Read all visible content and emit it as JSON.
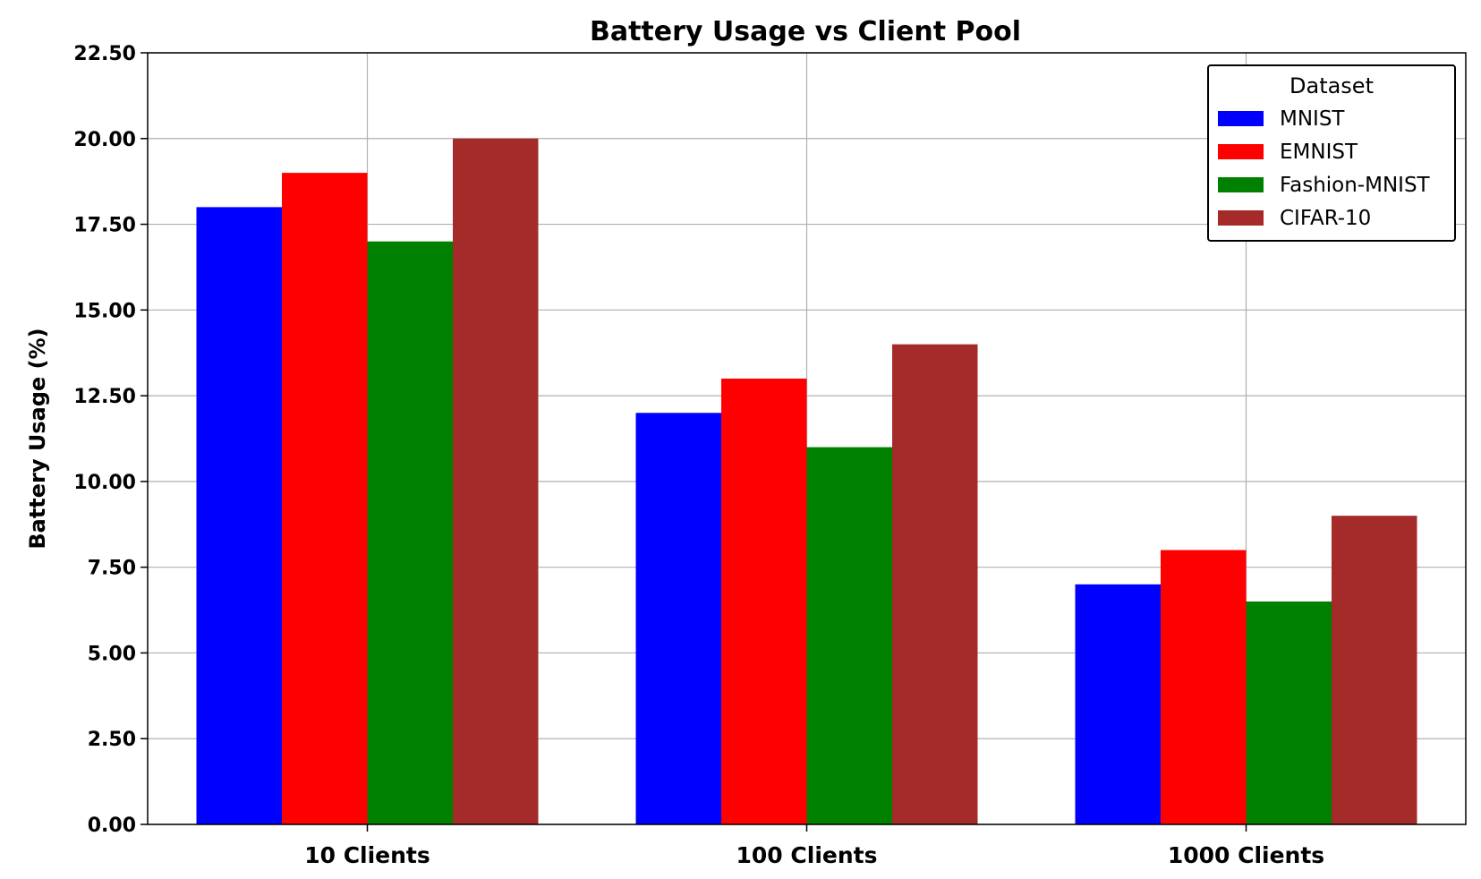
{
  "chart_data": {
    "type": "bar",
    "title": "Battery Usage vs Client Pool",
    "xlabel": "",
    "ylabel": "Battery Usage (%)",
    "categories": [
      "10 Clients",
      "100 Clients",
      "1000 Clients"
    ],
    "ylim": [
      0,
      22.5
    ],
    "yticks": [
      "0.00",
      "2.50",
      "5.00",
      "7.50",
      "10.00",
      "12.50",
      "15.00",
      "17.50",
      "20.00",
      "22.50"
    ],
    "grid": true,
    "legend": {
      "title": "Dataset",
      "position": "top-right"
    },
    "series": [
      {
        "name": "MNIST",
        "color": "#0000ff",
        "values": [
          18,
          12,
          7
        ]
      },
      {
        "name": "EMNIST",
        "color": "#ff0000",
        "values": [
          19,
          13,
          8
        ]
      },
      {
        "name": "Fashion-MNIST",
        "color": "#008000",
        "values": [
          17,
          11,
          6.5
        ]
      },
      {
        "name": "CIFAR-10",
        "color": "#a52a2a",
        "values": [
          20,
          14,
          9
        ]
      }
    ]
  }
}
